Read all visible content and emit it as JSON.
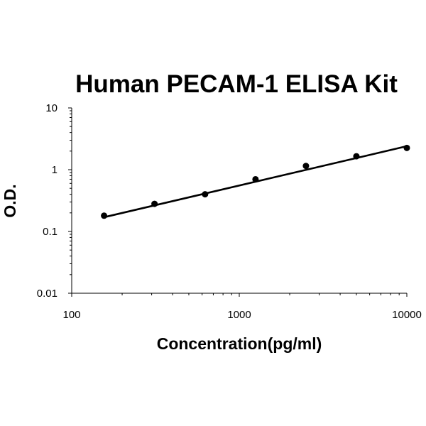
{
  "chart_data": {
    "type": "scatter",
    "title": "Human PECAM-1 ELISA Kit",
    "xlabel": "Concentration(pg/ml)",
    "ylabel": "O.D.",
    "x_scale": "log",
    "y_scale": "log",
    "xlim": [
      100,
      10000
    ],
    "ylim": [
      0.01,
      10
    ],
    "x_ticks": [
      "100",
      "1000",
      "10000"
    ],
    "y_ticks": [
      "10",
      "1",
      "0.1",
      "0.01"
    ],
    "grid": false,
    "legend": "none",
    "points": [
      {
        "x": 156,
        "y": 0.18
      },
      {
        "x": 312,
        "y": 0.28
      },
      {
        "x": 625,
        "y": 0.4
      },
      {
        "x": 1250,
        "y": 0.7
      },
      {
        "x": 2500,
        "y": 1.15
      },
      {
        "x": 5000,
        "y": 1.65
      },
      {
        "x": 10000,
        "y": 2.25
      }
    ],
    "trendline": {
      "type": "power",
      "from": {
        "x": 156,
        "y": 0.17
      },
      "to": {
        "x": 10000,
        "y": 2.4
      }
    },
    "colors": {
      "marker": "#000000",
      "line": "#000000",
      "axis": "#000000"
    }
  }
}
